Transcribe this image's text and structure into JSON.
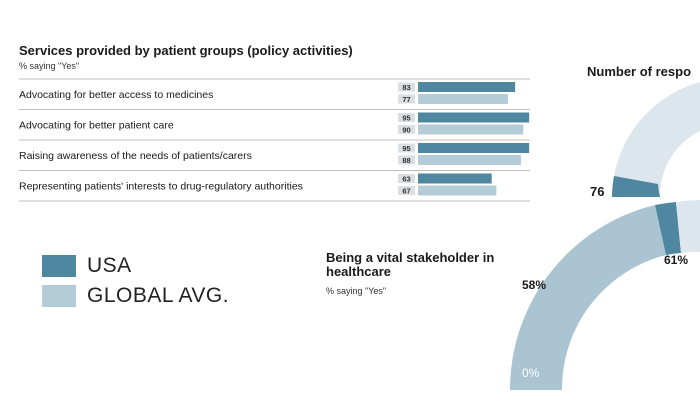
{
  "chart_data": [
    {
      "type": "bar",
      "orientation": "horizontal",
      "title": "Services provided by patient groups (policy activities)",
      "subtitle": "% saying \"Yes\"",
      "categories": [
        "Advocating for better access to medicines",
        "Advocating for better patient care",
        "Raising awareness of the needs of patients/carers",
        "Representing patients' interests to drug-regulatory authorities"
      ],
      "series": [
        {
          "name": "USA",
          "values": [
            83,
            95,
            95,
            63
          ],
          "color": "#4f86a0"
        },
        {
          "name": "GLOBAL AVG.",
          "values": [
            77,
            90,
            88,
            67
          ],
          "color": "#b3ccd8"
        }
      ],
      "xlim": [
        0,
        100
      ],
      "legend": "bottom-left"
    },
    {
      "type": "pie",
      "style": "donut",
      "title": "Number of respo",
      "labels": [
        "76"
      ],
      "partial": true
    },
    {
      "type": "pie",
      "style": "donut",
      "title": "Being a vital stakeholder in healthcare",
      "subtitle": "% saying \"Yes\"",
      "labels": [
        "0%",
        "58%",
        "61%"
      ],
      "partial": true
    }
  ],
  "legend": {
    "items": [
      {
        "label": "USA",
        "color": "#4f86a0"
      },
      {
        "label": "GLOBAL AVG.",
        "color": "#b3ccd8"
      }
    ]
  }
}
